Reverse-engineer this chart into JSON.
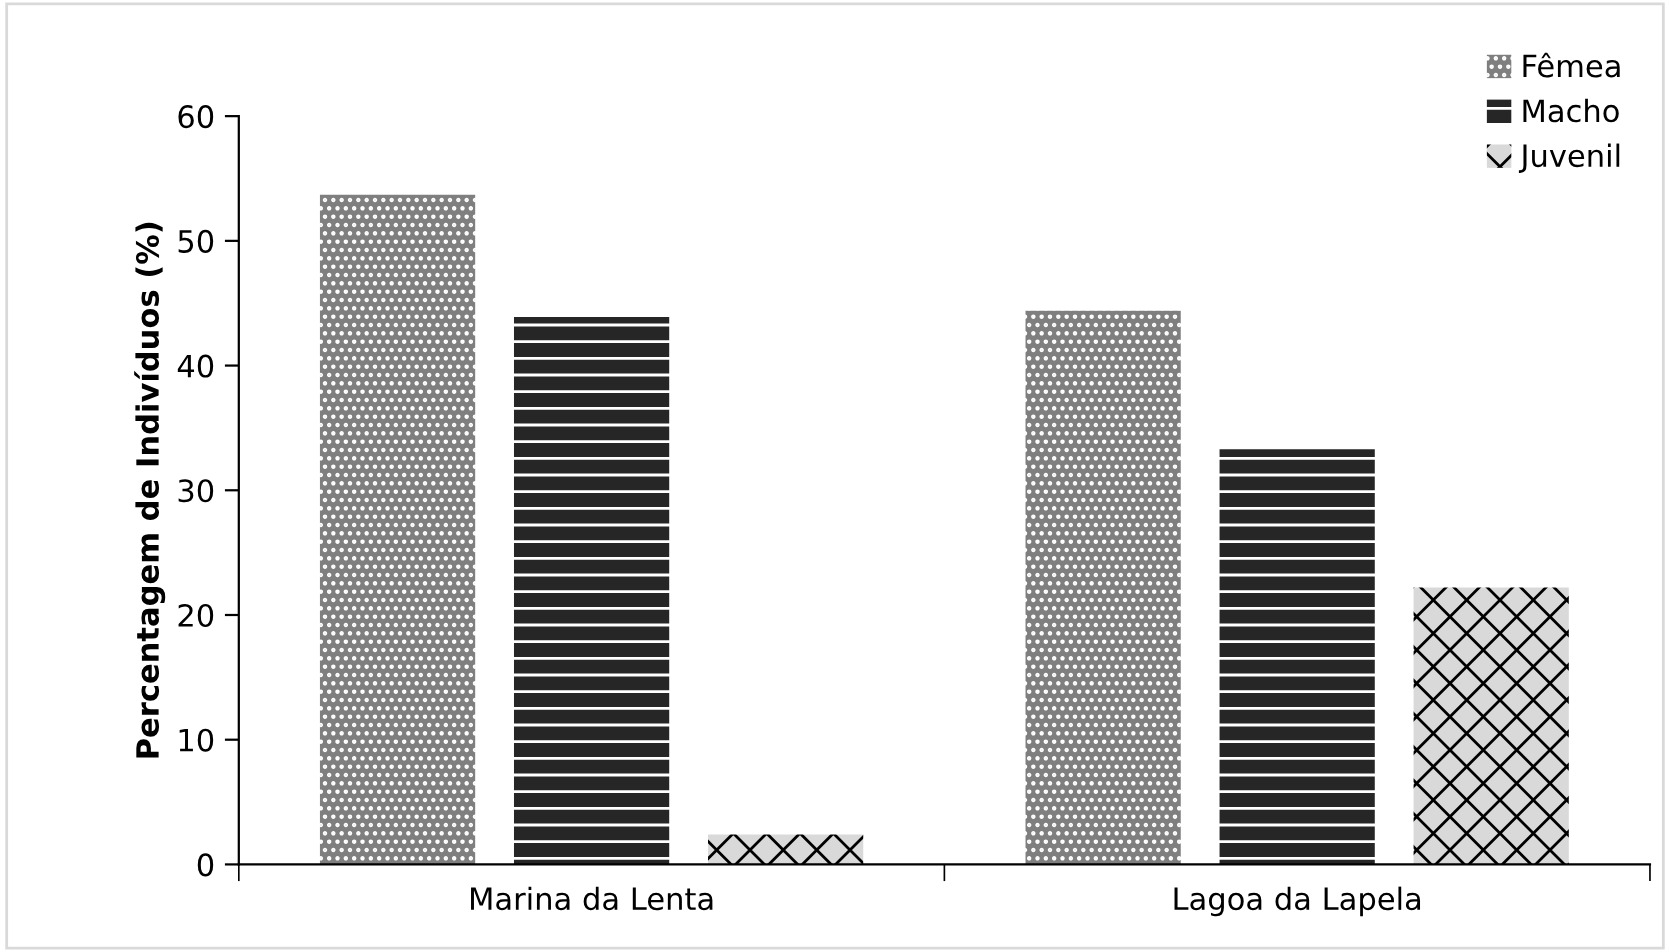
{
  "chart_data": {
    "type": "bar",
    "ylabel": "Percentagem de Indivíduos (%)",
    "categories": [
      "Marina da Lenta",
      "Lagoa da Lapela"
    ],
    "series": [
      {
        "name": "Fêmea",
        "color": "#7f7f7f",
        "values": [
          53.7,
          44.4
        ]
      },
      {
        "name": "Macho",
        "color": "#262626",
        "values": [
          43.9,
          33.3
        ]
      },
      {
        "name": "Juvenil",
        "color": "#d9d9d9",
        "values": [
          2.4,
          22.2
        ]
      }
    ],
    "ylim": [
      0,
      60
    ],
    "yticks": [
      0,
      10,
      20,
      30,
      40,
      50,
      60
    ],
    "grid": false,
    "legend": "top right"
  }
}
